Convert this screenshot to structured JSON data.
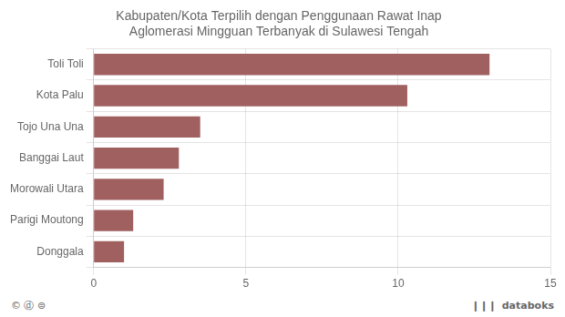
{
  "chart_data": {
    "type": "bar",
    "orientation": "horizontal",
    "title": "Kabupaten/Kota Terpilih dengan Penggunaan Rawat Inap\nAglomerasi Mingguan Terbanyak di Sulawesi Tengah",
    "categories": [
      "Toli Toli",
      "Kota Palu",
      "Tojo Una Una",
      "Banggai Laut",
      "Morowali Utara",
      "Parigi Moutong",
      "Donggala"
    ],
    "values": [
      13.0,
      10.3,
      3.5,
      2.8,
      2.3,
      1.3,
      1.0
    ],
    "color": "#a06060",
    "xlim": [
      0,
      15
    ],
    "xticks": [
      0,
      5,
      10,
      15
    ],
    "grid": true,
    "annotations": [
      "© ⓓ ⊜",
      "❙❙❙",
      "databoks"
    ]
  }
}
